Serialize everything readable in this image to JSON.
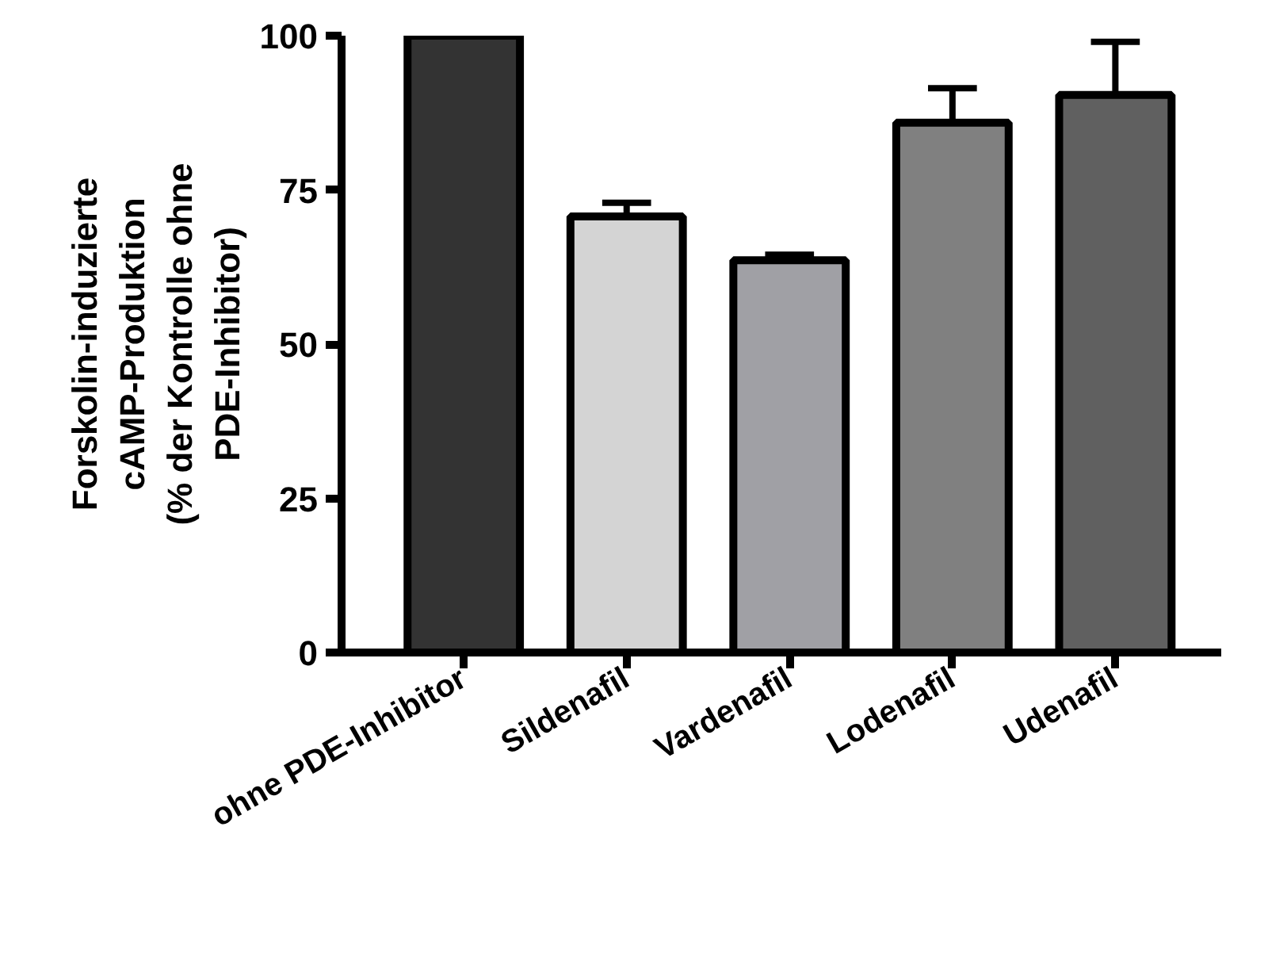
{
  "chart_data": {
    "type": "bar",
    "ylabel": "Forskolin-induzierte\ncAMP-Produktion\n(% der Kontrolle ohne\nPDE-Inhibitor)",
    "categories": [
      "ohne PDE-Inhibitor",
      "Sildenafil",
      "Vardenafil",
      "Lodenafil",
      "Udenafil"
    ],
    "values": [
      100,
      70.7,
      63.6,
      85.9,
      90.4
    ],
    "colors": [
      "#333333",
      "#d4d4d4",
      "#a0a0a5",
      "#808080",
      "#606060"
    ],
    "errors": [
      null,
      [
        70.7,
        72.9
      ],
      [
        63.6,
        64.5
      ],
      [
        85.9,
        91.5
      ],
      [
        90.4,
        99.0
      ]
    ],
    "ylim": [
      0,
      100
    ],
    "yticks": [
      0,
      25,
      50,
      75,
      100
    ],
    "grid": false
  }
}
